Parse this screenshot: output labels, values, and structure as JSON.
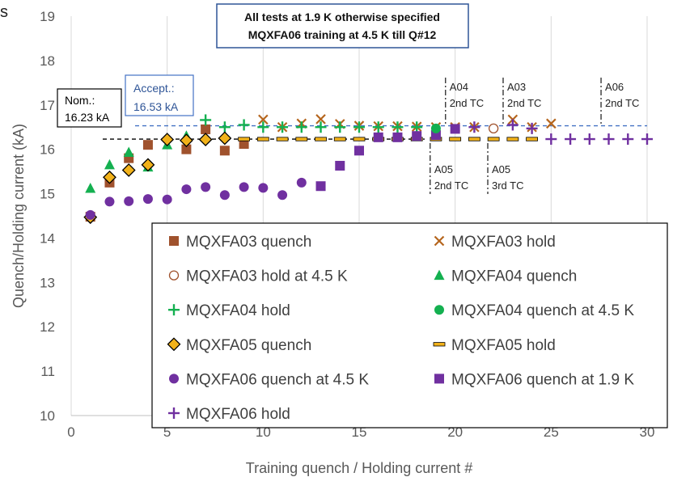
{
  "edge_fragment": "s",
  "colors": {
    "MQXFA03": "#a0522d",
    "MQXFA03x": "#b5651d",
    "MQXFA04": "#14b050",
    "MQXFA05": "#f2b21a",
    "MQXFA06": "#7030a0",
    "nominal_line": "#000000",
    "accept_line": "#4472c4",
    "accept_text": "#2f5597",
    "title_border": "#2f5597"
  },
  "chart_data": {
    "type": "scatter",
    "title_lines": [
      "All tests at 1.9 K otherwise specified",
      "MQXFA06 training at 4.5 K till Q#12"
    ],
    "xlabel": "Training quench / Holding current #",
    "ylabel": "Quench/Holding current (kA)",
    "xlim": [
      0,
      30
    ],
    "ylim": [
      10,
      19
    ],
    "xticks": [
      0,
      5,
      10,
      15,
      20,
      25,
      30
    ],
    "yticks": [
      10,
      11,
      12,
      13,
      14,
      15,
      16,
      17,
      18,
      19
    ],
    "grid": "vertical",
    "legend_placement": "lower-right",
    "reference_lines": [
      {
        "label_lines": [
          "Nom.:",
          "16.23 kA"
        ],
        "value": 16.23,
        "style": "dashed",
        "color": "#000000"
      },
      {
        "label_lines": [
          "Accept.:",
          "16.53 kA"
        ],
        "value": 16.53,
        "style": "dashed",
        "color": "#4472c4"
      }
    ],
    "annotations": [
      {
        "lines": [
          "A04",
          "2nd TC"
        ],
        "x": 19.5,
        "position": "above"
      },
      {
        "lines": [
          "A03",
          "2nd  TC"
        ],
        "x": 22.5,
        "position": "above"
      },
      {
        "lines": [
          "A06",
          "2nd  TC"
        ],
        "x": 27.6,
        "position": "above"
      },
      {
        "lines": [
          "A05",
          "2nd  TC"
        ],
        "x": 18.7,
        "position": "below"
      },
      {
        "lines": [
          "A05",
          "3rd  TC"
        ],
        "x": 21.7,
        "position": "below"
      }
    ],
    "series": [
      {
        "name": "MQXFA03 quench",
        "marker": "square",
        "color": "#a0522d",
        "x": [
          1,
          2,
          3,
          4,
          6,
          7,
          8,
          9
        ],
        "y": [
          14.48,
          15.25,
          15.8,
          16.1,
          16.0,
          16.45,
          15.97,
          16.12
        ]
      },
      {
        "name": "MQXFA03 hold",
        "marker": "x",
        "color": "#b5651d",
        "x": [
          10,
          11,
          12,
          13,
          14,
          15,
          16,
          17,
          18,
          19,
          20,
          21,
          23,
          24,
          25
        ],
        "y": [
          16.67,
          16.5,
          16.58,
          16.68,
          16.57,
          16.53,
          16.52,
          16.52,
          16.51,
          16.5,
          16.5,
          16.5,
          16.67,
          16.5,
          16.58
        ]
      },
      {
        "name": "MQXFA03 hold at 4.5 K",
        "marker": "circle-open",
        "color": "#a0522d",
        "x": [
          22
        ],
        "y": [
          16.47
        ]
      },
      {
        "name": "MQXFA04 quench",
        "marker": "triangle",
        "color": "#14b050",
        "x": [
          1,
          2,
          3,
          4,
          5,
          6
        ],
        "y": [
          15.12,
          15.65,
          15.93,
          15.6,
          16.1,
          16.3
        ]
      },
      {
        "name": "MQXFA04 hold",
        "marker": "plus",
        "color": "#14b050",
        "x": [
          7,
          8,
          9,
          10,
          11,
          12,
          13,
          14,
          15,
          16,
          17,
          18
        ],
        "y": [
          16.66,
          16.5,
          16.55,
          16.5,
          16.5,
          16.5,
          16.5,
          16.5,
          16.5,
          16.5,
          16.5,
          16.5
        ]
      },
      {
        "name": "MQXFA04 quench at 4.5 K",
        "marker": "circle",
        "color": "#14b050",
        "x": [
          19
        ],
        "y": [
          16.47
        ]
      },
      {
        "name": "MQXFA05 quench",
        "marker": "diamond",
        "color": "#f2b21a",
        "x": [
          1,
          2,
          3,
          4,
          5,
          6,
          7,
          8
        ],
        "y": [
          14.47,
          15.37,
          15.53,
          15.65,
          16.22,
          16.2,
          16.22,
          16.25
        ]
      },
      {
        "name": "MQXFA05 hold",
        "marker": "dash",
        "color": "#f2b21a",
        "x": [
          9,
          10,
          11,
          12,
          13,
          14,
          15,
          16,
          17,
          18,
          19,
          20,
          21,
          22,
          23,
          24
        ],
        "y": [
          16.23,
          16.23,
          16.23,
          16.23,
          16.23,
          16.23,
          16.23,
          16.23,
          16.23,
          16.23,
          16.23,
          16.23,
          16.23,
          16.23,
          16.23,
          16.23
        ]
      },
      {
        "name": "MQXFA06 quench at 4.5 K",
        "marker": "circle",
        "color": "#7030a0",
        "x": [
          1,
          2,
          3,
          4,
          5,
          6,
          7,
          8,
          9,
          10,
          11,
          12
        ],
        "y": [
          14.52,
          14.82,
          14.83,
          14.88,
          14.87,
          15.1,
          15.15,
          14.97,
          15.15,
          15.13,
          14.97,
          15.25
        ]
      },
      {
        "name": "MQXFA06 quench at 1.9 K",
        "marker": "square",
        "color": "#7030a0",
        "x": [
          13,
          14,
          15,
          16,
          17,
          18,
          19,
          20
        ],
        "y": [
          15.17,
          15.63,
          15.97,
          16.27,
          16.27,
          16.3,
          16.32,
          16.46
        ]
      },
      {
        "name": "MQXFA06 hold",
        "marker": "plus",
        "color": "#7030a0",
        "x": [
          21,
          23,
          24,
          25,
          26,
          27,
          28,
          29,
          30
        ],
        "y": [
          16.5,
          16.55,
          16.47,
          16.23,
          16.23,
          16.23,
          16.23,
          16.23,
          16.23
        ]
      }
    ]
  }
}
